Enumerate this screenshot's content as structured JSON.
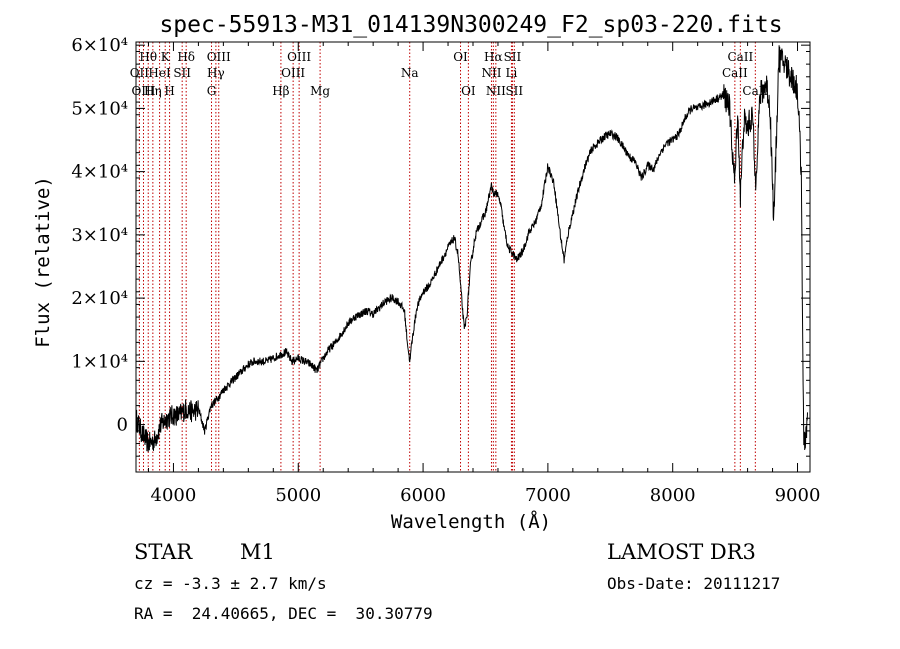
{
  "chart_data": {
    "type": "line",
    "title": "spec-55913-M31_014139N300249_F2_sp03-220.fits",
    "xlabel": "Wavelength (Å)",
    "ylabel": "Flux (relative)",
    "xlim": [
      3700,
      9100
    ],
    "ylim": [
      -7500,
      60500
    ],
    "xticks": [
      4000,
      5000,
      6000,
      7000,
      8000,
      9000
    ],
    "yticks": [
      0,
      10000,
      20000,
      30000,
      40000,
      50000,
      60000
    ],
    "ytick_labels": [
      "0",
      "1×10⁴",
      "2×10⁴",
      "3×10⁴",
      "4×10⁴",
      "5×10⁴",
      "6×10⁴"
    ],
    "grid": false,
    "series": [
      {
        "values": [
          [
            3700,
            1000
          ],
          [
            3750,
            -1500
          ],
          [
            3800,
            -3000
          ],
          [
            3850,
            -2500
          ],
          [
            3900,
            0
          ],
          [
            3950,
            1000
          ],
          [
            4000,
            1500
          ],
          [
            4050,
            1500
          ],
          [
            4100,
            2500
          ],
          [
            4150,
            2000
          ],
          [
            4200,
            2500
          ],
          [
            4250,
            -1000
          ],
          [
            4300,
            3000
          ],
          [
            4350,
            4000
          ],
          [
            4400,
            5500
          ],
          [
            4450,
            6500
          ],
          [
            4500,
            7500
          ],
          [
            4550,
            8500
          ],
          [
            4600,
            9500
          ],
          [
            4650,
            10000
          ],
          [
            4700,
            10000
          ],
          [
            4750,
            10000
          ],
          [
            4800,
            10500
          ],
          [
            4850,
            11000
          ],
          [
            4900,
            11500
          ],
          [
            4950,
            10000
          ],
          [
            5000,
            10500
          ],
          [
            5050,
            10000
          ],
          [
            5100,
            9500
          ],
          [
            5150,
            8500
          ],
          [
            5200,
            10500
          ],
          [
            5250,
            12000
          ],
          [
            5300,
            13000
          ],
          [
            5350,
            14500
          ],
          [
            5400,
            16000
          ],
          [
            5450,
            17000
          ],
          [
            5500,
            17500
          ],
          [
            5550,
            18000
          ],
          [
            5600,
            17500
          ],
          [
            5650,
            18500
          ],
          [
            5700,
            19500
          ],
          [
            5750,
            20000
          ],
          [
            5800,
            19500
          ],
          [
            5850,
            18000
          ],
          [
            5880,
            12000
          ],
          [
            5895,
            10000
          ],
          [
            5910,
            13000
          ],
          [
            5950,
            18500
          ],
          [
            6000,
            21000
          ],
          [
            6050,
            22000
          ],
          [
            6100,
            24000
          ],
          [
            6150,
            26000
          ],
          [
            6200,
            28000
          ],
          [
            6250,
            29500
          ],
          [
            6280,
            27000
          ],
          [
            6300,
            22000
          ],
          [
            6330,
            15000
          ],
          [
            6350,
            17000
          ],
          [
            6380,
            25000
          ],
          [
            6420,
            30000
          ],
          [
            6450,
            31500
          ],
          [
            6500,
            33500
          ],
          [
            6550,
            38000
          ],
          [
            6565,
            36000
          ],
          [
            6580,
            37000
          ],
          [
            6620,
            35000
          ],
          [
            6650,
            31000
          ],
          [
            6680,
            28000
          ],
          [
            6720,
            27000
          ],
          [
            6750,
            26000
          ],
          [
            6800,
            27500
          ],
          [
            6850,
            30500
          ],
          [
            6900,
            32000
          ],
          [
            6950,
            35000
          ],
          [
            7000,
            41000
          ],
          [
            7050,
            38000
          ],
          [
            7100,
            30000
          ],
          [
            7130,
            26000
          ],
          [
            7160,
            30000
          ],
          [
            7200,
            33500
          ],
          [
            7250,
            37500
          ],
          [
            7300,
            41000
          ],
          [
            7350,
            43500
          ],
          [
            7400,
            44500
          ],
          [
            7450,
            45500
          ],
          [
            7500,
            46000
          ],
          [
            7550,
            45500
          ],
          [
            7600,
            44000
          ],
          [
            7650,
            42500
          ],
          [
            7700,
            41500
          ],
          [
            7750,
            39000
          ],
          [
            7800,
            41000
          ],
          [
            7850,
            40500
          ],
          [
            7900,
            43000
          ],
          [
            7950,
            44500
          ],
          [
            8000,
            45000
          ],
          [
            8050,
            46000
          ],
          [
            8100,
            48500
          ],
          [
            8150,
            50000
          ],
          [
            8200,
            50000
          ],
          [
            8250,
            50500
          ],
          [
            8300,
            51000
          ],
          [
            8350,
            51500
          ],
          [
            8400,
            52000
          ],
          [
            8450,
            51000
          ],
          [
            8498,
            38000
          ],
          [
            8520,
            50000
          ],
          [
            8542,
            36000
          ],
          [
            8570,
            48000
          ],
          [
            8600,
            47000
          ],
          [
            8640,
            49000
          ],
          [
            8662,
            38000
          ],
          [
            8700,
            52000
          ],
          [
            8750,
            54000
          ],
          [
            8780,
            50000
          ],
          [
            8810,
            32000
          ],
          [
            8850,
            58000
          ],
          [
            8900,
            57000
          ],
          [
            8950,
            55000
          ],
          [
            9000,
            53000
          ],
          [
            9030,
            40000
          ],
          [
            9050,
            -4000
          ],
          [
            9080,
            1000
          ]
        ]
      }
    ],
    "spectral_lines": [
      {
        "name": "Hθ",
        "x": 3798,
        "row": 0
      },
      {
        "name": "OII",
        "x": 3727,
        "row": 1
      },
      {
        "name": "OIII",
        "x": 3760,
        "row": 2
      },
      {
        "name": "K",
        "x": 3934,
        "row": 0
      },
      {
        "name": "HeI",
        "x": 3889,
        "row": 1
      },
      {
        "name": "Hη",
        "x": 3835,
        "row": 2
      },
      {
        "name": "Hδ",
        "x": 4102,
        "row": 0
      },
      {
        "name": "SII",
        "x": 4070,
        "row": 1
      },
      {
        "name": "H",
        "x": 3969,
        "row": 2
      },
      {
        "name": "OIII",
        "x": 4363,
        "row": 0
      },
      {
        "name": "Hγ",
        "x": 4340,
        "row": 1
      },
      {
        "name": "G",
        "x": 4305,
        "row": 2
      },
      {
        "name": "OIII",
        "x": 5007,
        "row": 0
      },
      {
        "name": "OIII",
        "x": 4959,
        "row": 1
      },
      {
        "name": "Hβ",
        "x": 4861,
        "row": 2
      },
      {
        "name": "Mg",
        "x": 5175,
        "row": 2
      },
      {
        "name": "Na",
        "x": 5893,
        "row": 1
      },
      {
        "name": "OI",
        "x": 6300,
        "row": 0
      },
      {
        "name": "OI",
        "x": 6363,
        "row": 2
      },
      {
        "name": "Hα",
        "x": 6563,
        "row": 0
      },
      {
        "name": "SII",
        "x": 6716,
        "row": 0
      },
      {
        "name": "NII",
        "x": 6548,
        "row": 1
      },
      {
        "name": "Li",
        "x": 6708,
        "row": 1
      },
      {
        "name": "NII",
        "x": 6583,
        "row": 2
      },
      {
        "name": "SII",
        "x": 6731,
        "row": 2
      },
      {
        "name": "CaII",
        "x": 8542,
        "row": 0
      },
      {
        "name": "CaII",
        "x": 8498,
        "row": 1
      },
      {
        "name": "CaII",
        "x": 8662,
        "row": 2
      }
    ]
  },
  "info": {
    "object_class": "STAR",
    "subclass": "M1",
    "survey": "LAMOST DR3",
    "cz": "cz = -3.3 ± 2.7 km/s",
    "obs_date": "Obs-Date: 20111217",
    "radec": "RA =  24.40665, DEC =  30.30779"
  },
  "colors": {
    "spectrum": "#000000",
    "line_markers": "#c00000",
    "axes": "#000000"
  }
}
